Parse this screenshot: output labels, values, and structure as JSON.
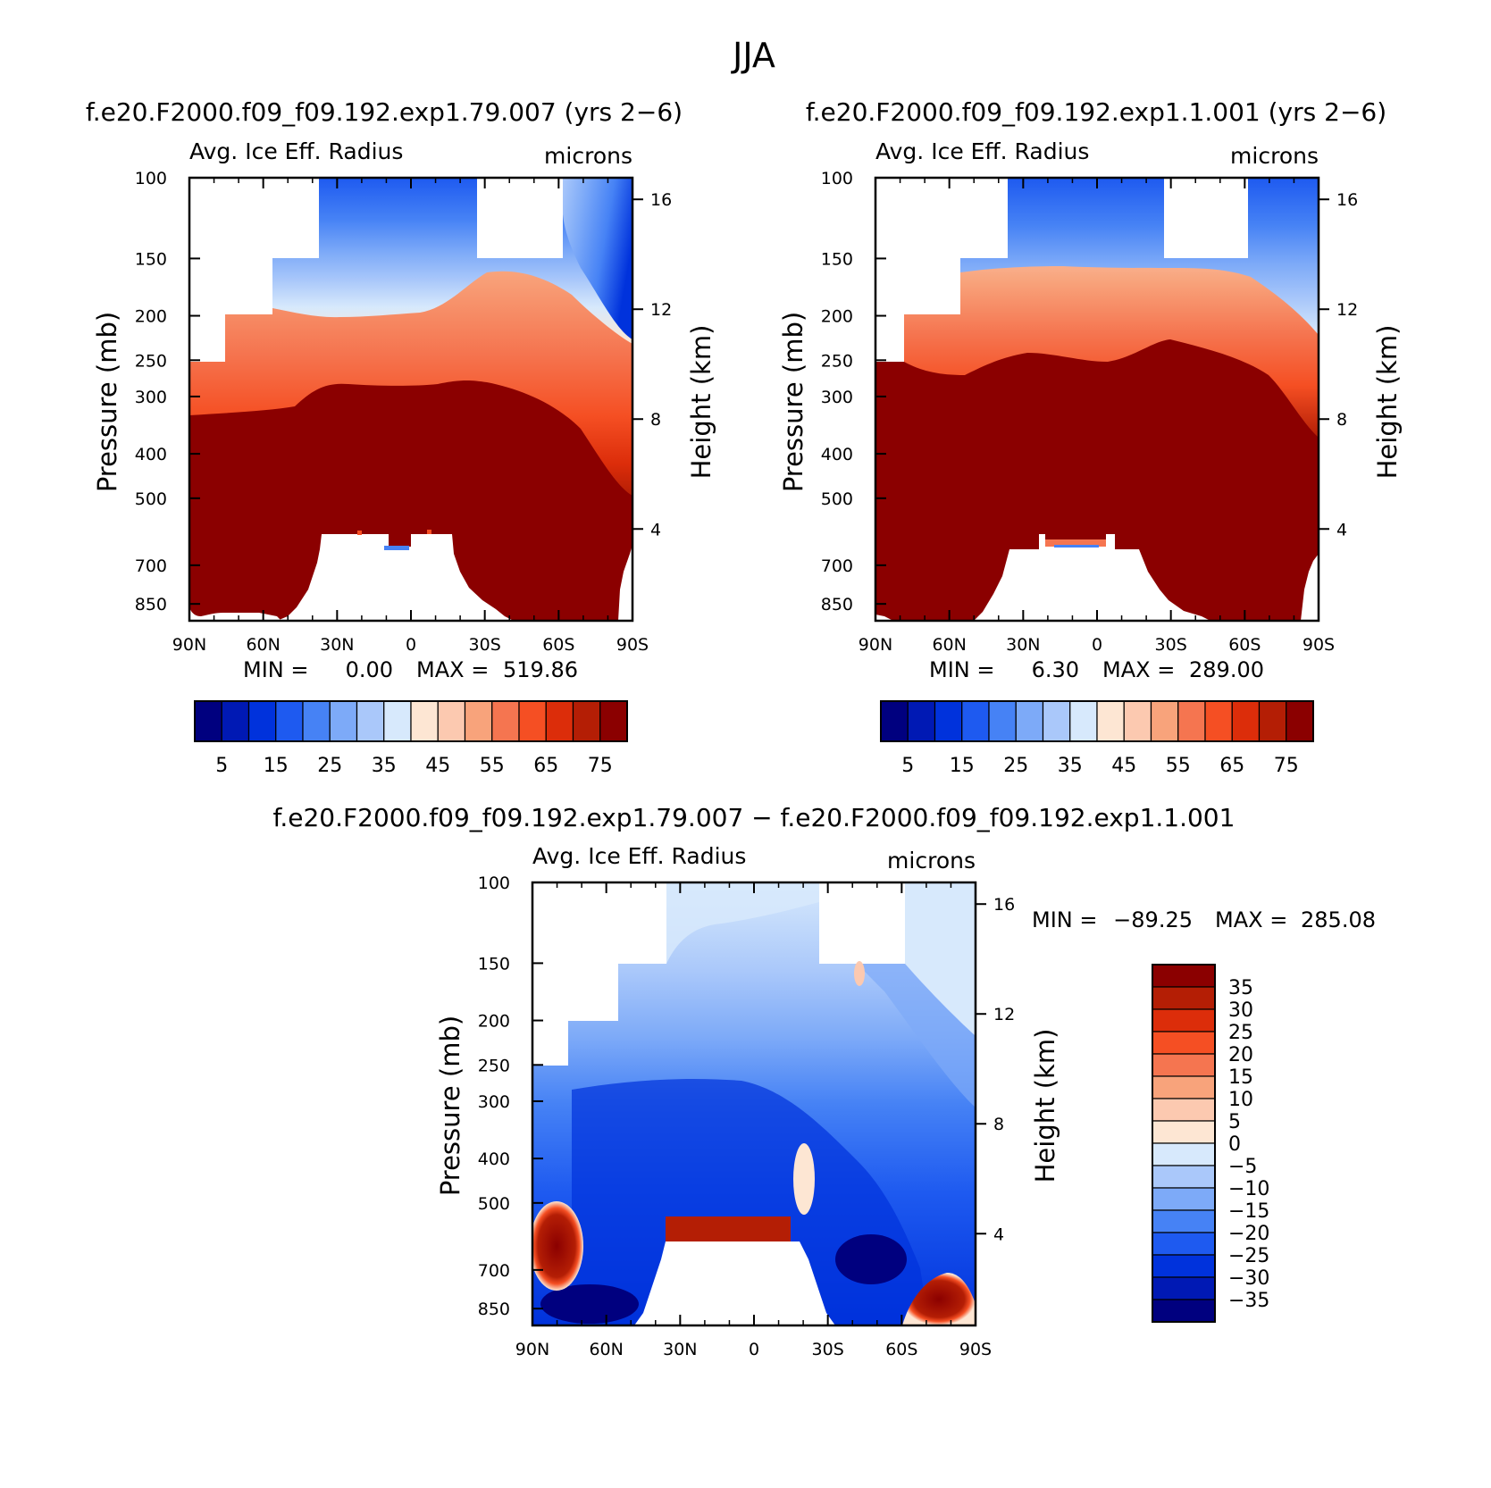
{
  "main_title": "JJA",
  "colors": {
    "scale": [
      "#00007f",
      "#0019b4",
      "#0032dc",
      "#1e5af0",
      "#4682f5",
      "#7daaf8",
      "#aac8fa",
      "#d7e9fc",
      "#fde6d3",
      "#fcc9b0",
      "#f8a37b",
      "#f57550",
      "#f54f23",
      "#dc2d0a",
      "#b41e05",
      "#8b0000"
    ]
  },
  "panels": [
    {
      "id": "p1",
      "title": "f.e20.F2000.f09_f09.192.exp1.79.007 (yrs 2−6)",
      "left_label": "Avg. Ice Eff. Radius",
      "right_label": "microns",
      "ylabel": "Pressure (mb)",
      "y2label": "Height (km)",
      "x_ticks": [
        "90N",
        "60N",
        "30N",
        "0",
        "30S",
        "60S",
        "90S"
      ],
      "y_ticks": [
        "100",
        "150",
        "200",
        "250",
        "300",
        "400",
        "500",
        "700",
        "850"
      ],
      "y2_ticks": [
        "16",
        "12",
        "8",
        "4"
      ],
      "stats": {
        "min_label": "MIN =",
        "min": "0.00",
        "max_label": "MAX =",
        "max": "519.86"
      },
      "colorbar_labels": [
        "5",
        "15",
        "25",
        "35",
        "45",
        "55",
        "65",
        "75"
      ]
    },
    {
      "id": "p2",
      "title": "f.e20.F2000.f09_f09.192.exp1.1.001 (yrs 2−6)",
      "left_label": "Avg. Ice Eff. Radius",
      "right_label": "microns",
      "ylabel": "Pressure (mb)",
      "y2label": "Height (km)",
      "x_ticks": [
        "90N",
        "60N",
        "30N",
        "0",
        "30S",
        "60S",
        "90S"
      ],
      "y_ticks": [
        "100",
        "150",
        "200",
        "250",
        "300",
        "400",
        "500",
        "700",
        "850"
      ],
      "y2_ticks": [
        "16",
        "12",
        "8",
        "4"
      ],
      "stats": {
        "min_label": "MIN =",
        "min": "6.30",
        "max_label": "MAX =",
        "max": "289.00"
      },
      "colorbar_labels": [
        "5",
        "15",
        "25",
        "35",
        "45",
        "55",
        "65",
        "75"
      ]
    },
    {
      "id": "p3",
      "title": "f.e20.F2000.f09_f09.192.exp1.79.007 − f.e20.F2000.f09_f09.192.exp1.1.001",
      "left_label": "Avg. Ice Eff. Radius",
      "right_label": "microns",
      "ylabel": "Pressure (mb)",
      "y2label": "Height (km)",
      "x_ticks": [
        "90N",
        "60N",
        "30N",
        "0",
        "30S",
        "60S",
        "90S"
      ],
      "y_ticks": [
        "100",
        "150",
        "200",
        "250",
        "300",
        "400",
        "500",
        "700",
        "850"
      ],
      "y2_ticks": [
        "16",
        "12",
        "8",
        "4"
      ],
      "stats": {
        "min_label": "MIN =",
        "min": "−89.25",
        "max_label": "MAX =",
        "max": "285.08"
      },
      "colorbar_labels": [
        "35",
        "30",
        "25",
        "20",
        "15",
        "10",
        "5",
        "0",
        "−5",
        "−10",
        "−15",
        "−20",
        "−25",
        "−30",
        "−35"
      ]
    }
  ],
  "chart_data": [
    {
      "type": "heatmap",
      "title": "f.e20.F2000.f09_f09.192.exp1.79.007 (yrs 2−6)",
      "variable": "Avg. Ice Eff. Radius",
      "units": "microns",
      "season": "JJA",
      "x": [
        "90N",
        "60N",
        "30N",
        "0",
        "30S",
        "60S",
        "90S"
      ],
      "xlim": [
        -90,
        90
      ],
      "ylabel": "Pressure (mb)",
      "ylim": [
        100,
        925
      ],
      "y2label": "Height (km)",
      "contour_levels": [
        5,
        10,
        15,
        20,
        25,
        30,
        35,
        40,
        45,
        50,
        55,
        60,
        65,
        70,
        75
      ],
      "min": 0.0,
      "max": 519.86
    },
    {
      "type": "heatmap",
      "title": "f.e20.F2000.f09_f09.192.exp1.1.001 (yrs 2−6)",
      "variable": "Avg. Ice Eff. Radius",
      "units": "microns",
      "season": "JJA",
      "x": [
        "90N",
        "60N",
        "30N",
        "0",
        "30S",
        "60S",
        "90S"
      ],
      "xlim": [
        -90,
        90
      ],
      "ylabel": "Pressure (mb)",
      "ylim": [
        100,
        925
      ],
      "y2label": "Height (km)",
      "contour_levels": [
        5,
        10,
        15,
        20,
        25,
        30,
        35,
        40,
        45,
        50,
        55,
        60,
        65,
        70,
        75
      ],
      "min": 6.3,
      "max": 289.0
    },
    {
      "type": "heatmap",
      "title": "f.e20.F2000.f09_f09.192.exp1.79.007 − f.e20.F2000.f09_f09.192.exp1.1.001",
      "variable": "Avg. Ice Eff. Radius",
      "units": "microns",
      "season": "JJA",
      "x": [
        "90N",
        "60N",
        "30N",
        "0",
        "30S",
        "60S",
        "90S"
      ],
      "xlim": [
        -90,
        90
      ],
      "ylabel": "Pressure (mb)",
      "ylim": [
        100,
        925
      ],
      "y2label": "Height (km)",
      "contour_levels": [
        -35,
        -30,
        -25,
        -20,
        -15,
        -10,
        -5,
        0,
        5,
        10,
        15,
        20,
        25,
        30,
        35
      ],
      "min": -89.25,
      "max": 285.08
    }
  ]
}
